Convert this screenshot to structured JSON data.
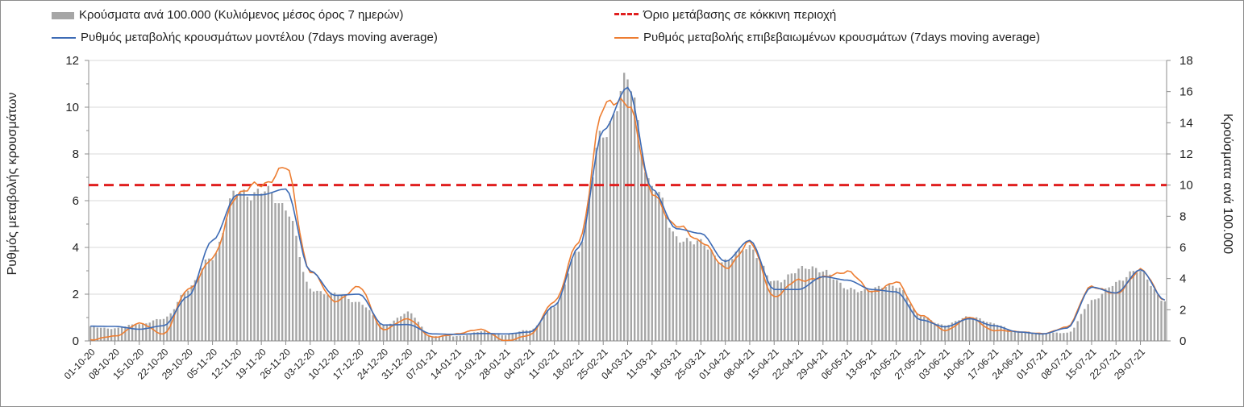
{
  "chart_data": {
    "type": "bar+line",
    "legend": {
      "bars": "Κρούσματα ανά 100.000 (Κυλιόμενος μέσος όρος 7 ημερών)",
      "threshold": "Όριο μετάβασης σε κόκκινη περιοχή",
      "model_line": "Ρυθμός μεταβολής κρουσμάτων μοντέλου (7days moving average)",
      "confirmed_line": "Ρυθμός μεταβολής επιβεβαιωμένων κρουσμάτων (7days moving average)"
    },
    "ylabel_left": "Ρυθμός μεταβολής κρουσμάτων",
    "ylabel_right": "Κρούσματα ανά 100.000",
    "ylim_left": [
      0,
      12
    ],
    "ylim_right": [
      0,
      18
    ],
    "yticks_left": [
      "0",
      "2",
      "4",
      "6",
      "8",
      "10",
      "12"
    ],
    "yticks_right": [
      "0",
      "2",
      "4",
      "6",
      "8",
      "10",
      "12",
      "14",
      "16",
      "18"
    ],
    "threshold_value_left": 6.67,
    "xticks": [
      "01-10-20",
      "08-10-20",
      "15-10-20",
      "22-10-20",
      "29-10-20",
      "05-11-20",
      "12-11-20",
      "19-11-20",
      "26-11-20",
      "03-12-20",
      "10-12-20",
      "17-12-20",
      "24-12-20",
      "31-12-20",
      "07-01-21",
      "14-01-21",
      "21-01-21",
      "28-01-21",
      "04-02-21",
      "11-02-21",
      "18-02-21",
      "25-02-21",
      "04-03-21",
      "11-03-21",
      "18-03-21",
      "25-03-21",
      "01-04-21",
      "08-04-21",
      "15-04-21",
      "22-04-21",
      "29-04-21",
      "06-05-21",
      "13-05-21",
      "20-05-21",
      "27-05-21",
      "03-06-21",
      "10-06-21",
      "17-06-21",
      "24-06-21",
      "01-07-21",
      "08-07-21",
      "15-07-21",
      "22-07-21",
      "29-07-21"
    ],
    "num_days": 309,
    "bars_right_keypoints": [
      [
        0,
        0.9
      ],
      [
        7,
        0.8
      ],
      [
        14,
        1.1
      ],
      [
        21,
        1.4
      ],
      [
        28,
        3.3
      ],
      [
        35,
        5.5
      ],
      [
        42,
        9.5
      ],
      [
        49,
        9.6
      ],
      [
        56,
        8.7
      ],
      [
        63,
        3.3
      ],
      [
        70,
        3.0
      ],
      [
        77,
        2.5
      ],
      [
        84,
        1.0
      ],
      [
        91,
        1.8
      ],
      [
        98,
        0.3
      ],
      [
        105,
        0.3
      ],
      [
        112,
        0.6
      ],
      [
        119,
        0.4
      ],
      [
        126,
        0.7
      ],
      [
        133,
        2.2
      ],
      [
        140,
        6.0
      ],
      [
        147,
        13.5
      ],
      [
        154,
        16.5
      ],
      [
        161,
        10.0
      ],
      [
        168,
        6.7
      ],
      [
        175,
        6.2
      ],
      [
        182,
        5.1
      ],
      [
        189,
        6.1
      ],
      [
        196,
        3.7
      ],
      [
        203,
        4.6
      ],
      [
        210,
        4.6
      ],
      [
        217,
        3.3
      ],
      [
        224,
        3.3
      ],
      [
        231,
        3.6
      ],
      [
        238,
        1.6
      ],
      [
        245,
        1.0
      ],
      [
        252,
        1.6
      ],
      [
        259,
        1.1
      ],
      [
        266,
        0.6
      ],
      [
        273,
        0.5
      ],
      [
        280,
        0.5
      ],
      [
        287,
        2.5
      ],
      [
        294,
        3.8
      ],
      [
        301,
        4.5
      ],
      [
        308,
        2.5
      ]
    ],
    "model_keypoints": [
      [
        0,
        0.63
      ],
      [
        7,
        0.62
      ],
      [
        14,
        0.5
      ],
      [
        21,
        0.65
      ],
      [
        28,
        1.9
      ],
      [
        35,
        4.3
      ],
      [
        42,
        6.25
      ],
      [
        49,
        6.25
      ],
      [
        56,
        6.5
      ],
      [
        63,
        3.0
      ],
      [
        70,
        1.95
      ],
      [
        77,
        2.0
      ],
      [
        84,
        0.68
      ],
      [
        91,
        0.7
      ],
      [
        98,
        0.3
      ],
      [
        105,
        0.28
      ],
      [
        112,
        0.32
      ],
      [
        119,
        0.3
      ],
      [
        126,
        0.38
      ],
      [
        133,
        1.5
      ],
      [
        140,
        4.0
      ],
      [
        147,
        9.0
      ],
      [
        154,
        10.85
      ],
      [
        161,
        6.5
      ],
      [
        168,
        4.8
      ],
      [
        175,
        4.6
      ],
      [
        182,
        3.4
      ],
      [
        189,
        4.3
      ],
      [
        196,
        2.2
      ],
      [
        203,
        2.2
      ],
      [
        210,
        2.75
      ],
      [
        217,
        2.6
      ],
      [
        224,
        2.2
      ],
      [
        231,
        2.1
      ],
      [
        238,
        0.9
      ],
      [
        245,
        0.6
      ],
      [
        252,
        0.95
      ],
      [
        259,
        0.65
      ],
      [
        266,
        0.38
      ],
      [
        273,
        0.3
      ],
      [
        280,
        0.55
      ],
      [
        287,
        2.3
      ],
      [
        294,
        2.05
      ],
      [
        301,
        3.05
      ],
      [
        308,
        1.75
      ]
    ],
    "confirmed_keypoints": [
      [
        0,
        0.05
      ],
      [
        7,
        0.2
      ],
      [
        14,
        0.75
      ],
      [
        21,
        0.3
      ],
      [
        28,
        2.2
      ],
      [
        35,
        3.5
      ],
      [
        42,
        6.3
      ],
      [
        49,
        6.7
      ],
      [
        56,
        7.4
      ],
      [
        63,
        3.0
      ],
      [
        70,
        1.7
      ],
      [
        77,
        2.3
      ],
      [
        84,
        0.48
      ],
      [
        91,
        0.95
      ],
      [
        98,
        0.15
      ],
      [
        105,
        0.3
      ],
      [
        112,
        0.5
      ],
      [
        119,
        0.0
      ],
      [
        126,
        0.25
      ],
      [
        133,
        1.7
      ],
      [
        140,
        4.2
      ],
      [
        147,
        10.0
      ],
      [
        154,
        10.3
      ],
      [
        161,
        6.3
      ],
      [
        168,
        4.9
      ],
      [
        175,
        4.3
      ],
      [
        182,
        3.1
      ],
      [
        189,
        4.2
      ],
      [
        196,
        1.9
      ],
      [
        203,
        2.6
      ],
      [
        210,
        2.7
      ],
      [
        217,
        3.0
      ],
      [
        224,
        2.1
      ],
      [
        231,
        2.5
      ],
      [
        238,
        1.1
      ],
      [
        245,
        0.45
      ],
      [
        252,
        1.0
      ],
      [
        259,
        0.45
      ],
      [
        266,
        0.4
      ],
      [
        273,
        0.3
      ],
      [
        280,
        0.6
      ],
      [
        287,
        2.35
      ],
      [
        294,
        2.0
      ],
      [
        301,
        3.05
      ],
      [
        308,
        1.75
      ]
    ]
  },
  "colors": {
    "bars": "#a6a6a6",
    "threshold": "#e01f1f",
    "model": "#3d6bb5",
    "confirmed": "#ed7d31",
    "grid": "#d9d9d9",
    "axis": "#8c8c8c"
  }
}
